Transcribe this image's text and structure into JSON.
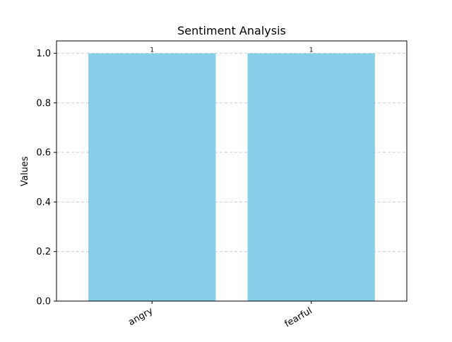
{
  "chart_data": {
    "type": "bar",
    "title": "Sentiment Analysis",
    "xlabel": "",
    "ylabel": "Values",
    "categories": [
      "angry",
      "fearful"
    ],
    "values": [
      1,
      1
    ],
    "data_labels": [
      "1",
      "1"
    ],
    "ylim": [
      0,
      1.05
    ],
    "yticks": [
      0.0,
      0.2,
      0.4,
      0.6,
      0.8,
      1.0
    ],
    "ytick_labels": [
      "0.0",
      "0.2",
      "0.4",
      "0.6",
      "0.8",
      "1.0"
    ],
    "grid": "y-dashed",
    "bar_color": "#87ceeb",
    "grid_color": "#cccccc"
  }
}
